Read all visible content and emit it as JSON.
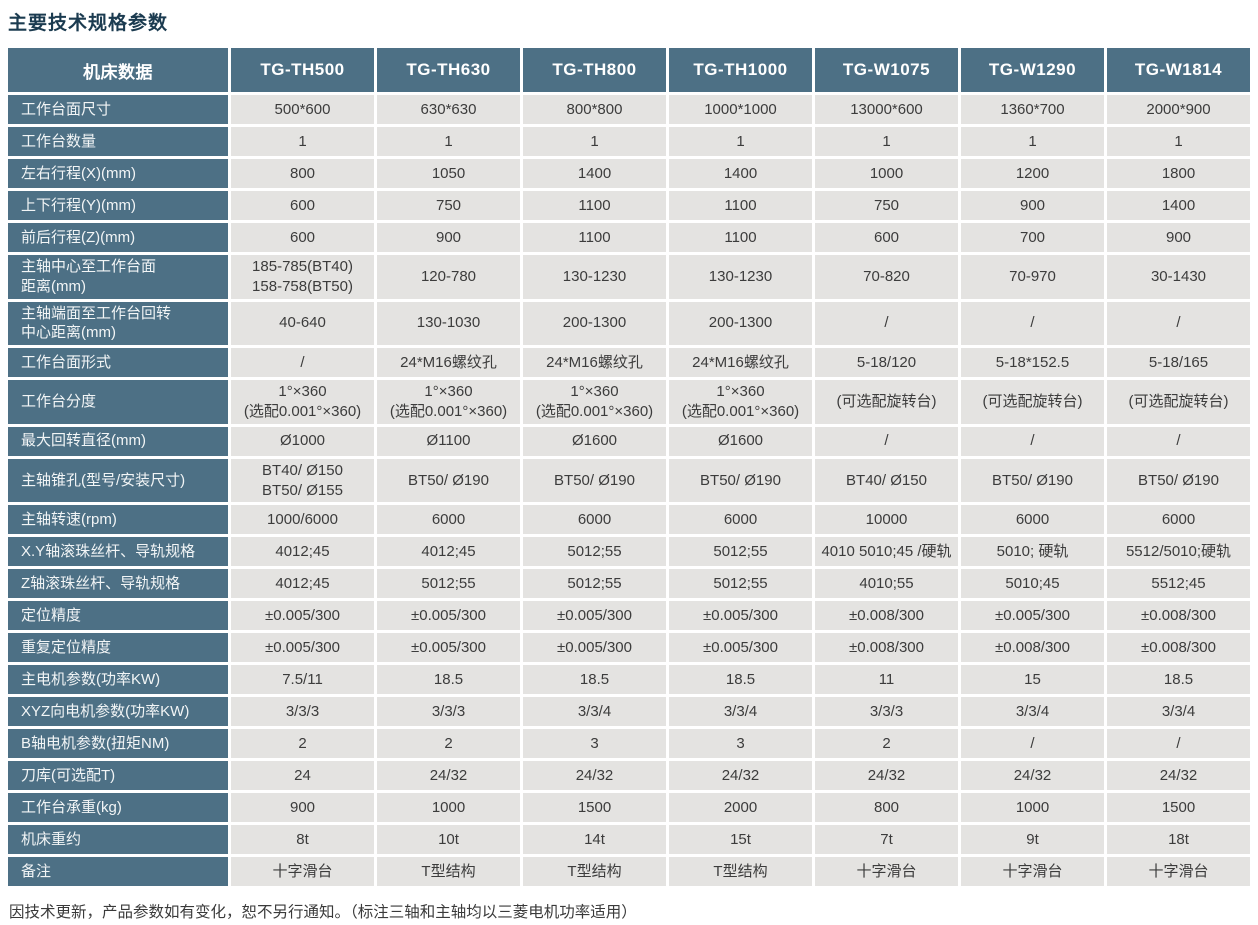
{
  "title": "主要技术规格参数",
  "footer_note": "因技术更新，产品参数如有变化，恕不另行通知。（标注三轴和主轴均以三菱电机功率适用）",
  "colors": {
    "header_bg": "#4d7085",
    "cell_bg": "#e4e3e1",
    "title_text": "#1b3b50"
  },
  "table": {
    "corner_header": "机床数据",
    "models": [
      "TG-TH500",
      "TG-TH630",
      "TG-TH800",
      "TG-TH1000",
      "TG-W1075",
      "TG-W1290",
      "TG-W1814"
    ],
    "rows": [
      {
        "label": "工作台面尺寸",
        "values": [
          "500*600",
          "630*630",
          "800*800",
          "1000*1000",
          "13000*600",
          "1360*700",
          "2000*900"
        ]
      },
      {
        "label": "工作台数量",
        "values": [
          "1",
          "1",
          "1",
          "1",
          "1",
          "1",
          "1"
        ]
      },
      {
        "label": "左右行程(X)(mm)",
        "values": [
          "800",
          "1050",
          "1400",
          "1400",
          "1000",
          "1200",
          "1800"
        ]
      },
      {
        "label": "上下行程(Y)(mm)",
        "values": [
          "600",
          "750",
          "1100",
          "1100",
          "750",
          "900",
          "1400"
        ]
      },
      {
        "label": "前后行程(Z)(mm)",
        "values": [
          "600",
          "900",
          "1100",
          "1100",
          "600",
          "700",
          "900"
        ]
      },
      {
        "label": "主轴中心至工作台面\n距离(mm)",
        "values": [
          "185-785(BT40)\n158-758(BT50)",
          "120-780",
          "130-1230",
          "130-1230",
          "70-820",
          "70-970",
          "30-1430"
        ]
      },
      {
        "label": "主轴端面至工作台回转\n中心距离(mm)",
        "values": [
          "40-640",
          "130-1030",
          "200-1300",
          "200-1300",
          "/",
          "/",
          "/"
        ]
      },
      {
        "label": "工作台面形式",
        "values": [
          "/",
          "24*M16螺纹孔",
          "24*M16螺纹孔",
          "24*M16螺纹孔",
          "5-18/120",
          "5-18*152.5",
          "5-18/165"
        ]
      },
      {
        "label": "工作台分度",
        "values": [
          "1°×360\n(选配0.001°×360)",
          "1°×360\n(选配0.001°×360)",
          "1°×360\n(选配0.001°×360)",
          "1°×360\n(选配0.001°×360)",
          "(可选配旋转台)",
          "(可选配旋转台)",
          "(可选配旋转台)"
        ]
      },
      {
        "label": "最大回转直径(mm)",
        "values": [
          "Ø1000",
          "Ø1100",
          "Ø1600",
          "Ø1600",
          "/",
          "/",
          "/"
        ]
      },
      {
        "label": "主轴锥孔(型号/安装尺寸)",
        "values": [
          "BT40/ Ø150\nBT50/ Ø155",
          "BT50/ Ø190",
          "BT50/ Ø190",
          "BT50/ Ø190",
          "BT40/ Ø150",
          "BT50/ Ø190",
          "BT50/ Ø190"
        ]
      },
      {
        "label": "主轴转速(rpm)",
        "values": [
          "1000/6000",
          "6000",
          "6000",
          "6000",
          "10000",
          "6000",
          "6000"
        ]
      },
      {
        "label": "X.Y轴滚珠丝杆、导轨规格",
        "values": [
          "4012;45",
          "4012;45",
          "5012;55",
          "5012;55",
          "4010 5010;45 /硬轨",
          "5010; 硬轨",
          "5512/5010;硬轨"
        ]
      },
      {
        "label": "Z轴滚珠丝杆、导轨规格",
        "values": [
          "4012;45",
          "5012;55",
          "5012;55",
          "5012;55",
          "4010;55",
          "5010;45",
          "5512;45"
        ]
      },
      {
        "label": "定位精度",
        "values": [
          "±0.005/300",
          "±0.005/300",
          "±0.005/300",
          "±0.005/300",
          "±0.008/300",
          "±0.005/300",
          "±0.008/300"
        ]
      },
      {
        "label": "重复定位精度",
        "values": [
          "±0.005/300",
          "±0.005/300",
          "±0.005/300",
          "±0.005/300",
          "±0.008/300",
          "±0.008/300",
          "±0.008/300"
        ]
      },
      {
        "label": "主电机参数(功率KW)",
        "values": [
          "7.5/11",
          "18.5",
          "18.5",
          "18.5",
          "11",
          "15",
          "18.5"
        ]
      },
      {
        "label": "XYZ向电机参数(功率KW)",
        "values": [
          "3/3/3",
          "3/3/3",
          "3/3/4",
          "3/3/4",
          "3/3/3",
          "3/3/4",
          "3/3/4"
        ]
      },
      {
        "label": "B轴电机参数(扭矩NM)",
        "values": [
          "2",
          "2",
          "3",
          "3",
          "2",
          "/",
          "/"
        ]
      },
      {
        "label": "刀库(可选配T)",
        "values": [
          "24",
          "24/32",
          "24/32",
          "24/32",
          "24/32",
          "24/32",
          "24/32"
        ]
      },
      {
        "label": "工作台承重(kg)",
        "values": [
          "900",
          "1000",
          "1500",
          "2000",
          "800",
          "1000",
          "1500"
        ]
      },
      {
        "label": "机床重约",
        "values": [
          "8t",
          "10t",
          "14t",
          "15t",
          "7t",
          "9t",
          "18t"
        ]
      },
      {
        "label": "备注",
        "values": [
          "十字滑台",
          "T型结构",
          "T型结构",
          "T型结构",
          "十字滑台",
          "十字滑台",
          "十字滑台"
        ]
      }
    ]
  }
}
